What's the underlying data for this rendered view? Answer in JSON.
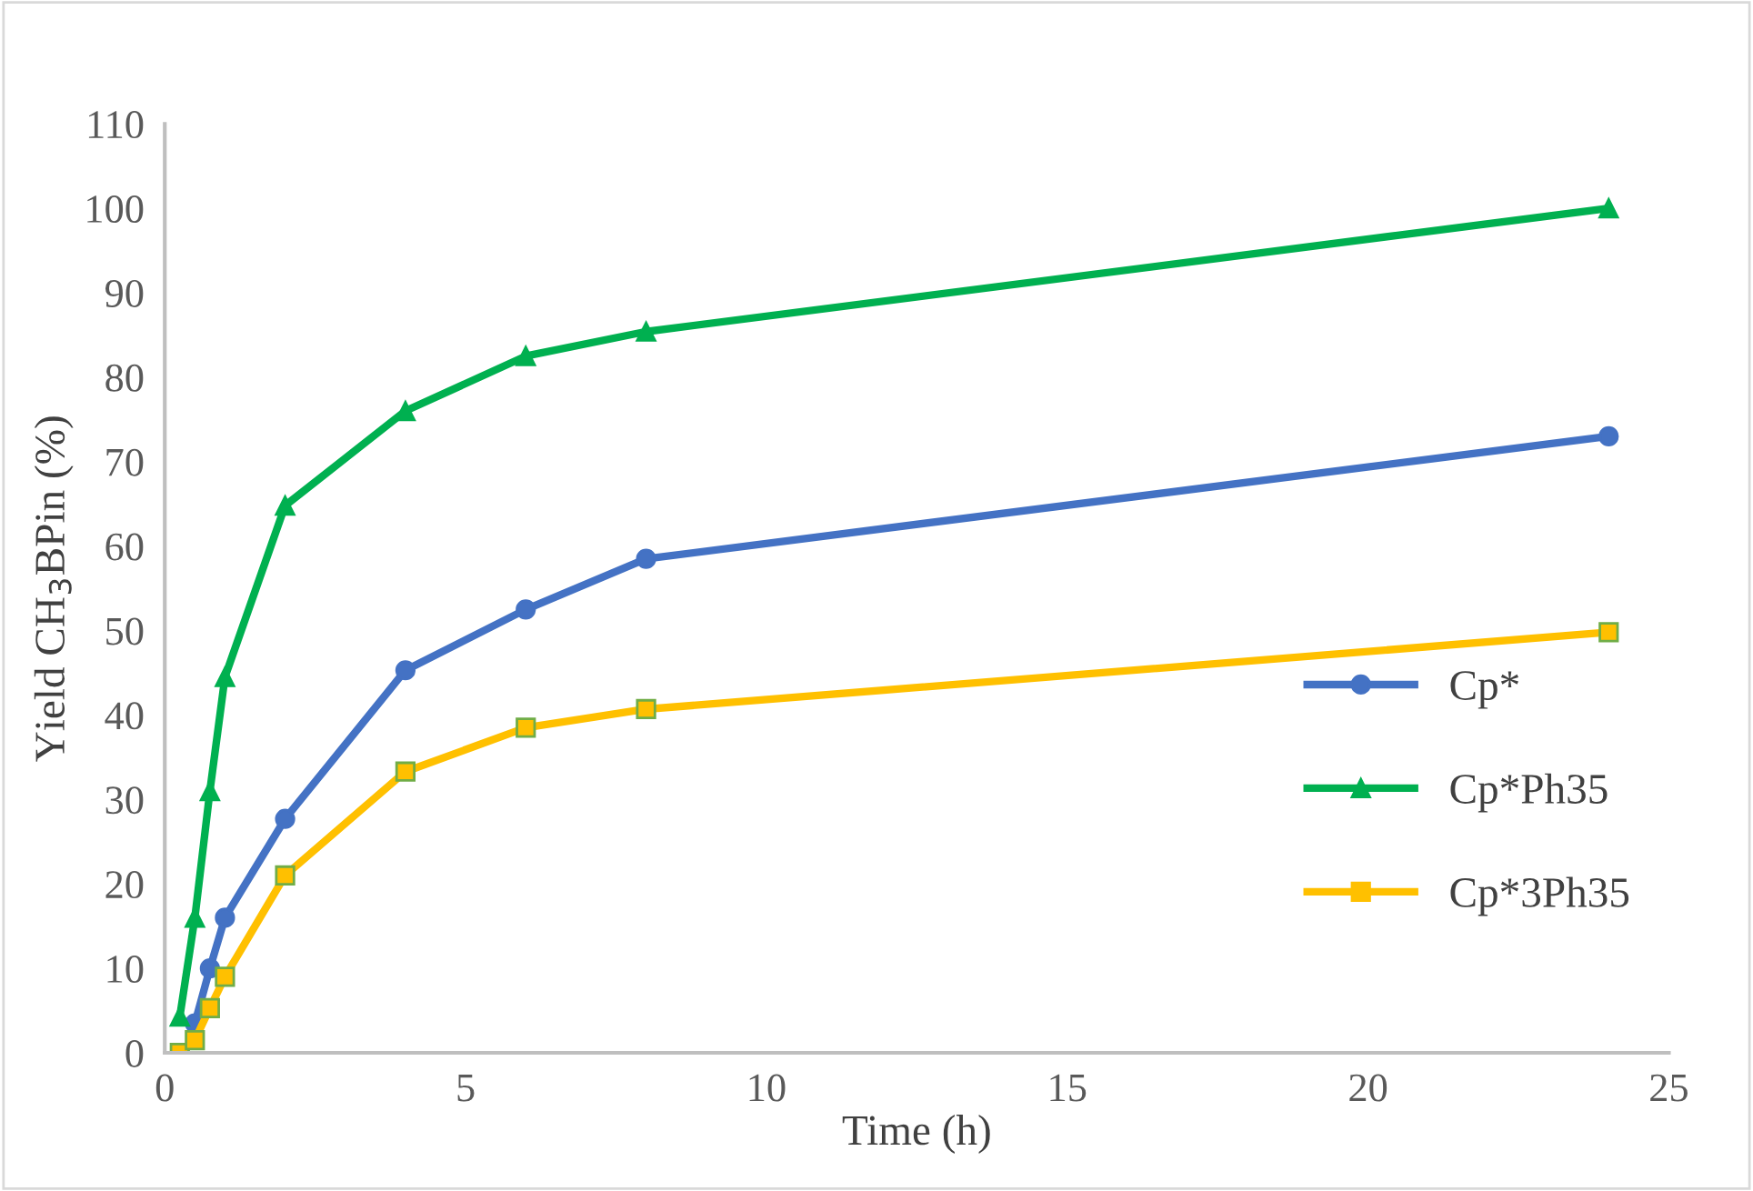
{
  "chart_data": {
    "type": "line",
    "xlabel": "Time (h)",
    "ylabel": "Yield CH$_{3}$BPin (%)",
    "x": [
      0.25,
      0.5,
      0.75,
      1,
      2,
      4,
      6,
      8,
      24
    ],
    "series": [
      {
        "name": "Cp*",
        "color": "#4472c4",
        "marker": "circle",
        "values": [
          null,
          3.5,
          10,
          16,
          27.7,
          45.3,
          52.5,
          58.5,
          73
        ]
      },
      {
        "name": "Cp*Ph35",
        "color": "#00b050",
        "marker": "triangle",
        "values": [
          4.3,
          16,
          31,
          44.5,
          64.8,
          76,
          82.5,
          85.4,
          100
        ]
      },
      {
        "name": "Cp*3Ph35",
        "color": "#ffc000",
        "marker": "square",
        "values": [
          0,
          1.5,
          5.3,
          9,
          21,
          33.3,
          38.5,
          40.7,
          49.8
        ]
      }
    ],
    "xlim": [
      0,
      25
    ],
    "xticks": [
      0,
      5,
      10,
      15,
      20,
      25
    ],
    "ylim": [
      0,
      110
    ],
    "yticks": [
      0,
      10,
      20,
      30,
      40,
      50,
      60,
      70,
      80,
      90,
      100,
      110
    ],
    "grid": false,
    "legend": "right",
    "line_style": "solid"
  }
}
